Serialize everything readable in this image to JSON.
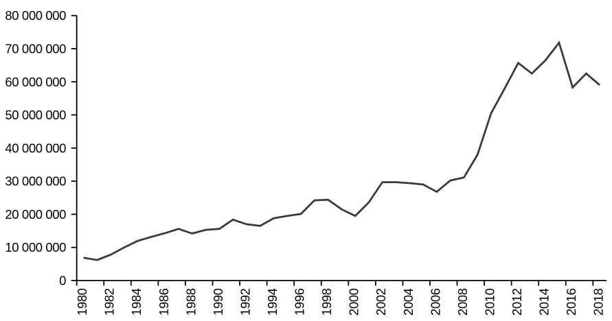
{
  "chart_data": {
    "type": "line",
    "title": "",
    "xlabel": "",
    "ylabel": "",
    "categories": [
      "1980",
      "1981",
      "1982",
      "1983",
      "1984",
      "1985",
      "1986",
      "1987",
      "1988",
      "1989",
      "1990",
      "1991",
      "1992",
      "1993",
      "1994",
      "1995",
      "1996",
      "1997",
      "1998",
      "1999",
      "2000",
      "2001",
      "2002",
      "2003",
      "2004",
      "2005",
      "2006",
      "2007",
      "2008",
      "2009",
      "2010",
      "2011",
      "2012",
      "2013",
      "2014",
      "2015",
      "2016",
      "2017",
      "2018"
    ],
    "values": [
      6900000,
      6200000,
      7800000,
      10000000,
      12000000,
      13200000,
      14300000,
      15600000,
      14200000,
      15300000,
      15600000,
      18400000,
      17000000,
      16500000,
      18800000,
      19500000,
      20100000,
      24200000,
      24400000,
      21500000,
      19500000,
      23600000,
      29700000,
      29700000,
      29400000,
      29000000,
      26800000,
      30200000,
      31100000,
      38000000,
      50500000,
      58000000,
      65700000,
      62500000,
      66500000,
      71800000,
      58300000,
      62500000,
      59000000
    ],
    "ylim": [
      0,
      80000000
    ],
    "ytick_values": [
      0,
      10000000,
      20000000,
      30000000,
      40000000,
      50000000,
      60000000,
      70000000,
      80000000
    ],
    "ytick_labels": [
      "0",
      "10 000 000",
      "20 000 000",
      "30 000 000",
      "40 000 000",
      "50 000 000",
      "60 000 000",
      "70 000 000",
      "80 000 000"
    ],
    "xtick_labels": [
      "1980",
      "1982",
      "1984",
      "1986",
      "1988",
      "1990",
      "1992",
      "1994",
      "1996",
      "1998",
      "2000",
      "2002",
      "2004",
      "2006",
      "2008",
      "2010",
      "2012",
      "2014",
      "2016",
      "2018"
    ],
    "grid": "off",
    "legend": "none",
    "line_color": "#3a3a3a",
    "axis_color": "#000000"
  }
}
